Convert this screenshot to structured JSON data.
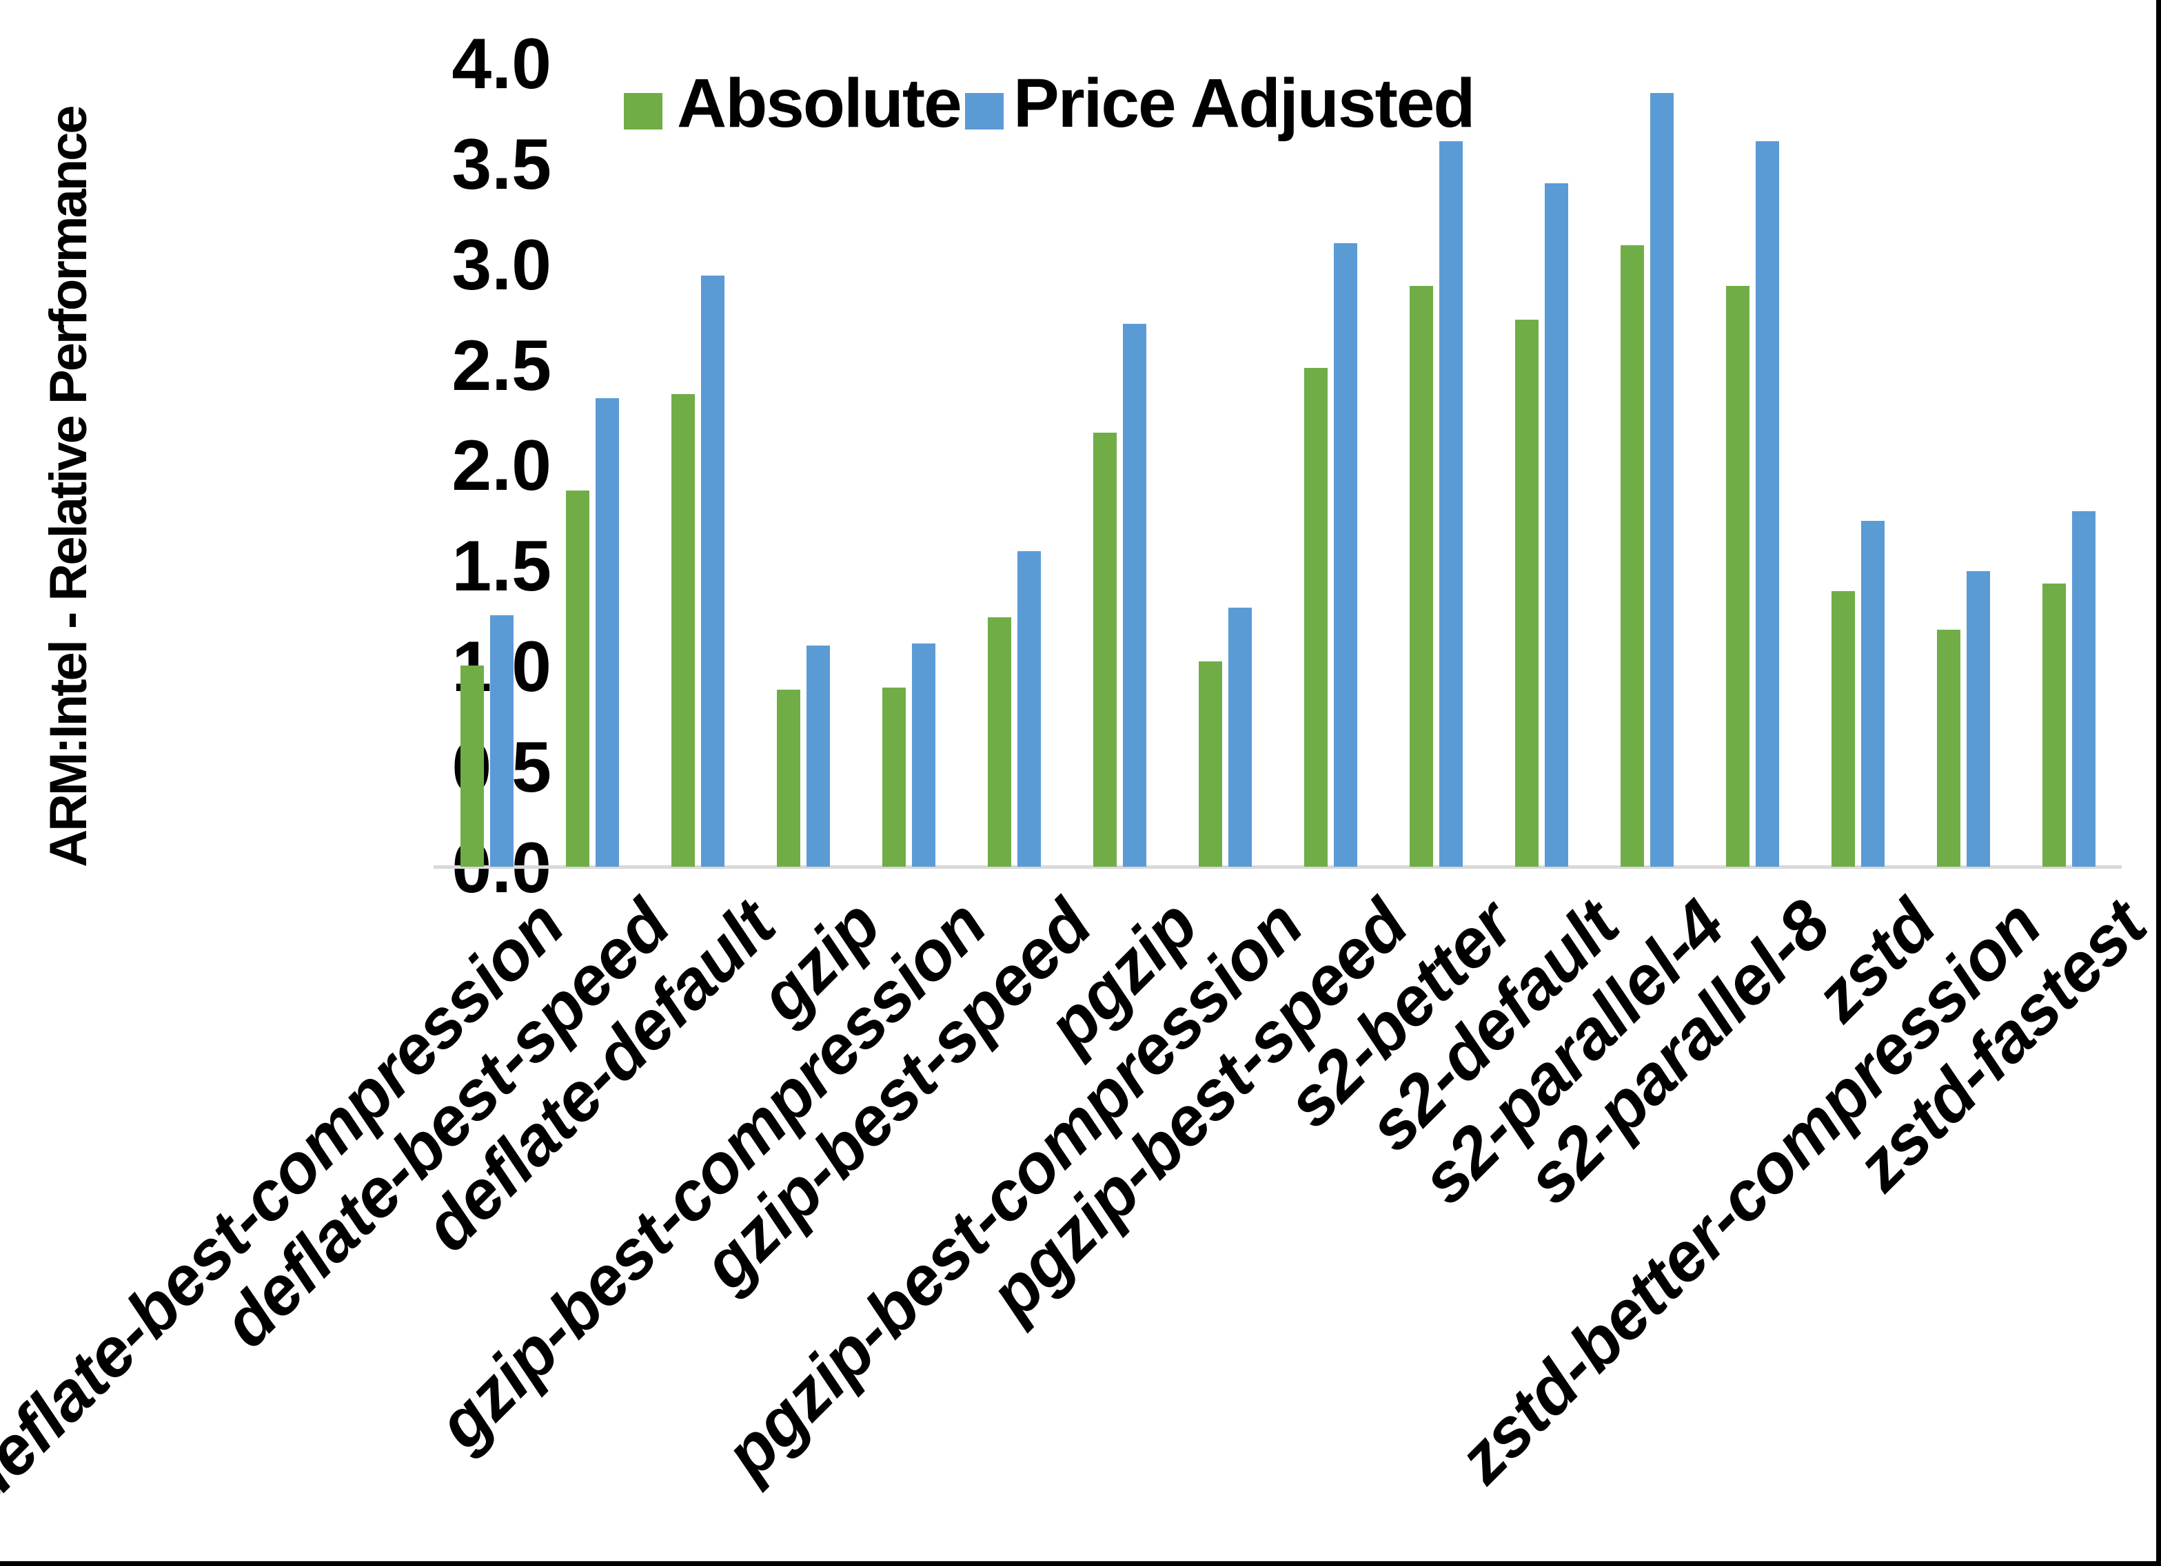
{
  "y_axis": {
    "title": "ARM:Intel - Relative Performance",
    "ticks": [
      "4.0",
      "3.5",
      "3.0",
      "2.5",
      "2.0",
      "1.5",
      "1.0",
      "0.5",
      "0.0"
    ],
    "min": 0.0,
    "max": 4.0,
    "step": 0.5
  },
  "legend": {
    "items": [
      {
        "label": "Absolute",
        "color": "#70AD47"
      },
      {
        "label": "Price Adjusted",
        "color": "#5B9BD5"
      }
    ],
    "position": "top"
  },
  "chart_data": {
    "type": "bar",
    "title": "",
    "xlabel": "",
    "ylabel": "ARM:Intel - Relative Performance",
    "ylim": [
      0.0,
      4.0
    ],
    "grid": false,
    "legend_position": "top",
    "categories": [
      "deflate-best-compression",
      "deflate-best-speed",
      "deflate-default",
      "gzip",
      "gzip-best-compression",
      "gzip-best-speed",
      "pgzip",
      "pgzip-best-compression",
      "pgzip-best-speed",
      "s2-better",
      "s2-default",
      "s2-parallel-4",
      "s2-parallel-8",
      "zstd",
      "zstd-better-compression",
      "zstd-fastest"
    ],
    "series": [
      {
        "name": "Absolute",
        "color": "#70AD47",
        "values": [
          1.0,
          1.87,
          2.35,
          0.88,
          0.89,
          1.24,
          2.16,
          1.02,
          2.48,
          2.89,
          2.72,
          3.09,
          2.89,
          1.37,
          1.18,
          1.41
        ]
      },
      {
        "name": "Price Adjusted",
        "color": "#5B9BD5",
        "values": [
          1.25,
          2.33,
          2.94,
          1.1,
          1.11,
          1.57,
          2.7,
          1.29,
          3.1,
          3.61,
          3.4,
          3.85,
          3.61,
          1.72,
          1.47,
          1.77
        ]
      }
    ],
    "axis_line_color": "#D9D9D9",
    "background_color": "#FFFFFF"
  }
}
